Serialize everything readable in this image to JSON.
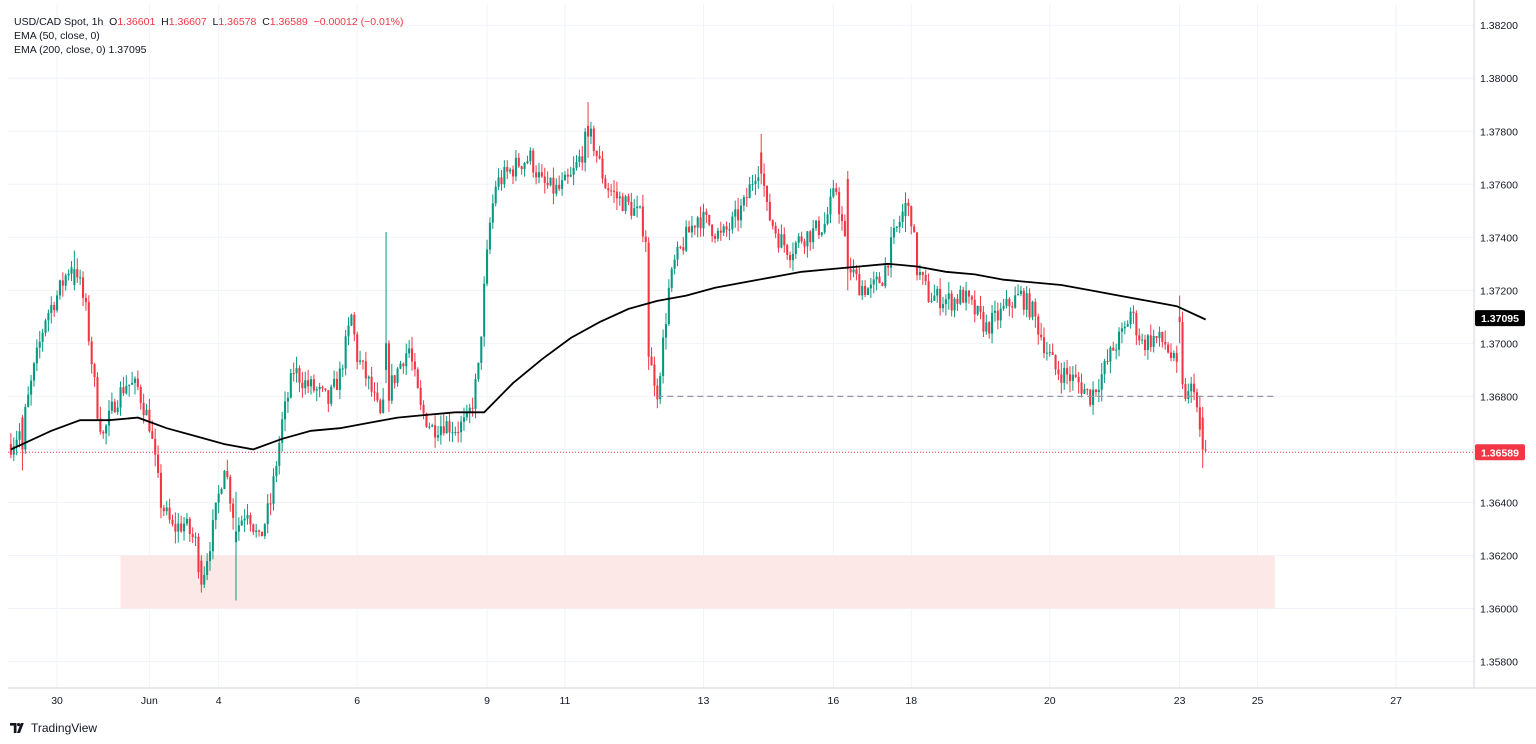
{
  "header": {
    "symbol": "USD/CAD Spot",
    "interval": "1h",
    "ohlc": {
      "open_label": "O",
      "open": "1.36601",
      "high_label": "H",
      "high": "1.36607",
      "low_label": "L",
      "low": "1.36578",
      "close_label": "C",
      "close": "1.36589",
      "change": "−0.00012 (−0.01%)"
    },
    "indicators": [
      {
        "label": "EMA (50, close, 0)"
      },
      {
        "label": "EMA (200, close, 0)",
        "value": "1.37095"
      }
    ]
  },
  "branding": {
    "logo_icon": "tradingview-logo-icon",
    "name": "TradingView"
  },
  "colors": {
    "up": "#089981",
    "down": "#f23645",
    "ema": "#000000",
    "zone_fill": "#fde8e8",
    "grid": "#f0f3fa",
    "dashed": "#9598a1"
  },
  "chart_data": {
    "type": "candlestick",
    "title": "USD/CAD Spot, 1h",
    "ylim": [
      1.357,
      1.3828
    ],
    "y_ticks": [
      "1.38200",
      "1.38000",
      "1.37800",
      "1.37600",
      "1.37400",
      "1.37200",
      "1.37000",
      "1.36800",
      "1.36600",
      "1.36400",
      "1.36200",
      "1.36000",
      "1.35800"
    ],
    "x_ticks": [
      {
        "label": "30",
        "hour": 12
      },
      {
        "label": "Jun",
        "hour": 44
      },
      {
        "label": "4",
        "hour": 68
      },
      {
        "label": "6",
        "hour": 116
      },
      {
        "label": "9",
        "hour": 161
      },
      {
        "label": "11",
        "hour": 188
      },
      {
        "label": "13",
        "hour": 236
      },
      {
        "label": "16",
        "hour": 281
      },
      {
        "label": "18",
        "hour": 308
      },
      {
        "label": "20",
        "hour": 356
      },
      {
        "label": "23",
        "hour": 401
      },
      {
        "label": "25",
        "hour": 428
      },
      {
        "label": "27",
        "hour": 476
      }
    ],
    "x_hour_range": [
      -5,
      503
    ],
    "price_path": [
      [
        -4,
        1.3662
      ],
      [
        0,
        1.3668
      ],
      [
        4,
        1.369
      ],
      [
        8,
        1.371
      ],
      [
        12,
        1.3718
      ],
      [
        16,
        1.3728
      ],
      [
        18,
        1.3732
      ],
      [
        22,
        1.3712
      ],
      [
        26,
        1.3675
      ],
      [
        28,
        1.3665
      ],
      [
        32,
        1.3678
      ],
      [
        36,
        1.3685
      ],
      [
        40,
        1.3683
      ],
      [
        44,
        1.367
      ],
      [
        48,
        1.364
      ],
      [
        52,
        1.363
      ],
      [
        56,
        1.3632
      ],
      [
        60,
        1.3625
      ],
      [
        62,
        1.361
      ],
      [
        66,
        1.363
      ],
      [
        70,
        1.3655
      ],
      [
        74,
        1.363
      ],
      [
        78,
        1.3638
      ],
      [
        82,
        1.3625
      ],
      [
        86,
        1.364
      ],
      [
        90,
        1.367
      ],
      [
        94,
        1.369
      ],
      [
        98,
        1.3685
      ],
      [
        102,
        1.3682
      ],
      [
        106,
        1.3678
      ],
      [
        110,
        1.3688
      ],
      [
        114,
        1.371
      ],
      [
        116,
        1.3695
      ],
      [
        120,
        1.3685
      ],
      [
        124,
        1.3672
      ],
      [
        128,
        1.3685
      ],
      [
        132,
        1.3695
      ],
      [
        134,
        1.3698
      ],
      [
        138,
        1.3675
      ],
      [
        142,
        1.3668
      ],
      [
        146,
        1.367
      ],
      [
        150,
        1.3668
      ],
      [
        154,
        1.367
      ],
      [
        156,
        1.3678
      ],
      [
        158,
        1.369
      ],
      [
        160,
        1.372
      ],
      [
        162,
        1.3745
      ],
      [
        164,
        1.376
      ],
      [
        168,
        1.3764
      ],
      [
        172,
        1.3768
      ],
      [
        176,
        1.377
      ],
      [
        180,
        1.376
      ],
      [
        184,
        1.3758
      ],
      [
        186,
        1.3758
      ],
      [
        190,
        1.3762
      ],
      [
        194,
        1.3772
      ],
      [
        196,
        1.378
      ],
      [
        198,
        1.3775
      ],
      [
        202,
        1.376
      ],
      [
        206,
        1.3755
      ],
      [
        210,
        1.3752
      ],
      [
        214,
        1.3748
      ],
      [
        216,
        1.374
      ],
      [
        218,
        1.369
      ],
      [
        220,
        1.3682
      ],
      [
        222,
        1.37
      ],
      [
        224,
        1.372
      ],
      [
        226,
        1.373
      ],
      [
        230,
        1.374
      ],
      [
        234,
        1.3748
      ],
      [
        238,
        1.3745
      ],
      [
        242,
        1.374
      ],
      [
        246,
        1.3745
      ],
      [
        250,
        1.3752
      ],
      [
        254,
        1.3765
      ],
      [
        256,
        1.3768
      ],
      [
        258,
        1.375
      ],
      [
        262,
        1.374
      ],
      [
        266,
        1.3735
      ],
      [
        270,
        1.374
      ],
      [
        274,
        1.3742
      ],
      [
        278,
        1.3745
      ],
      [
        280,
        1.3752
      ],
      [
        282,
        1.3758
      ],
      [
        284,
        1.3745
      ],
      [
        286,
        1.373
      ],
      [
        290,
        1.3722
      ],
      [
        294,
        1.372
      ],
      [
        298,
        1.3725
      ],
      [
        302,
        1.374
      ],
      [
        306,
        1.3752
      ],
      [
        308,
        1.3748
      ],
      [
        310,
        1.3728
      ],
      [
        314,
        1.3718
      ],
      [
        318,
        1.3717
      ],
      [
        322,
        1.3716
      ],
      [
        326,
        1.3718
      ],
      [
        330,
        1.3712
      ],
      [
        334,
        1.3706
      ],
      [
        338,
        1.371
      ],
      [
        342,
        1.3715
      ],
      [
        346,
        1.3718
      ],
      [
        350,
        1.3712
      ],
      [
        354,
        1.37
      ],
      [
        358,
        1.369
      ],
      [
        362,
        1.3688
      ],
      [
        366,
        1.3685
      ],
      [
        370,
        1.368
      ],
      [
        374,
        1.3688
      ],
      [
        378,
        1.3698
      ],
      [
        382,
        1.3705
      ],
      [
        384,
        1.3712
      ],
      [
        388,
        1.37
      ],
      [
        392,
        1.3702
      ],
      [
        396,
        1.37
      ],
      [
        400,
        1.369
      ],
      [
        402,
        1.3682
      ],
      [
        404,
        1.368
      ],
      [
        406,
        1.3685
      ],
      [
        408,
        1.3665
      ],
      [
        410,
        1.3659
      ]
    ],
    "special_candles": [
      {
        "hour": 0,
        "open": 1.3672,
        "high": 1.3673,
        "low": 1.3652,
        "close": 1.366
      },
      {
        "hour": 18,
        "open": 1.3722,
        "high": 1.3735,
        "low": 1.372,
        "close": 1.3728
      },
      {
        "hour": 62,
        "open": 1.3618,
        "high": 1.362,
        "low": 1.3606,
        "close": 1.3609
      },
      {
        "hour": 74,
        "open": 1.3625,
        "high": 1.3644,
        "low": 1.3603,
        "close": 1.3629
      },
      {
        "hour": 126,
        "open": 1.369,
        "high": 1.3742,
        "low": 1.3685,
        "close": 1.37
      },
      {
        "hour": 196,
        "open": 1.3782,
        "high": 1.3791,
        "low": 1.377,
        "close": 1.3778
      },
      {
        "hour": 217,
        "open": 1.3738,
        "high": 1.374,
        "low": 1.369,
        "close": 1.3695
      },
      {
        "hour": 219,
        "open": 1.3692,
        "high": 1.3695,
        "low": 1.368,
        "close": 1.3684
      },
      {
        "hour": 256,
        "open": 1.3772,
        "high": 1.3779,
        "low": 1.376,
        "close": 1.3764
      },
      {
        "hour": 286,
        "open": 1.3762,
        "high": 1.3765,
        "low": 1.372,
        "close": 1.3728
      },
      {
        "hour": 306,
        "open": 1.3748,
        "high": 1.3757,
        "low": 1.3742,
        "close": 1.3753
      },
      {
        "hour": 401,
        "open": 1.371,
        "high": 1.3718,
        "low": 1.37,
        "close": 1.3708
      },
      {
        "hour": 409,
        "open": 1.3672,
        "high": 1.3676,
        "low": 1.3653,
        "close": 1.366
      }
    ],
    "ema200": [
      [
        -4,
        1.366
      ],
      [
        10,
        1.3667
      ],
      [
        20,
        1.3671
      ],
      [
        30,
        1.3671
      ],
      [
        40,
        1.3672
      ],
      [
        50,
        1.3668
      ],
      [
        60,
        1.3665
      ],
      [
        70,
        1.3662
      ],
      [
        80,
        1.366
      ],
      [
        90,
        1.3664
      ],
      [
        100,
        1.3667
      ],
      [
        110,
        1.3668
      ],
      [
        120,
        1.367
      ],
      [
        130,
        1.3672
      ],
      [
        140,
        1.3673
      ],
      [
        150,
        1.3674
      ],
      [
        160,
        1.3674
      ],
      [
        170,
        1.3685
      ],
      [
        180,
        1.3694
      ],
      [
        190,
        1.3702
      ],
      [
        200,
        1.3708
      ],
      [
        210,
        1.3713
      ],
      [
        220,
        1.3716
      ],
      [
        230,
        1.3718
      ],
      [
        240,
        1.3721
      ],
      [
        250,
        1.3723
      ],
      [
        260,
        1.3725
      ],
      [
        270,
        1.3727
      ],
      [
        280,
        1.3728
      ],
      [
        290,
        1.3729
      ],
      [
        300,
        1.373
      ],
      [
        310,
        1.3729
      ],
      [
        320,
        1.3727
      ],
      [
        330,
        1.3726
      ],
      [
        340,
        1.3724
      ],
      [
        350,
        1.3723
      ],
      [
        360,
        1.3722
      ],
      [
        370,
        1.372
      ],
      [
        380,
        1.3718
      ],
      [
        390,
        1.3716
      ],
      [
        400,
        1.3714
      ],
      [
        410,
        1.3709
      ]
    ],
    "last_price": 1.36589,
    "ema200_value": 1.37095,
    "support_level": 1.368,
    "support_range": [
      220,
      434
    ],
    "zone": {
      "low": 1.36,
      "high": 1.362,
      "from_hour": 34,
      "to_hour": 434
    },
    "grid": true
  }
}
